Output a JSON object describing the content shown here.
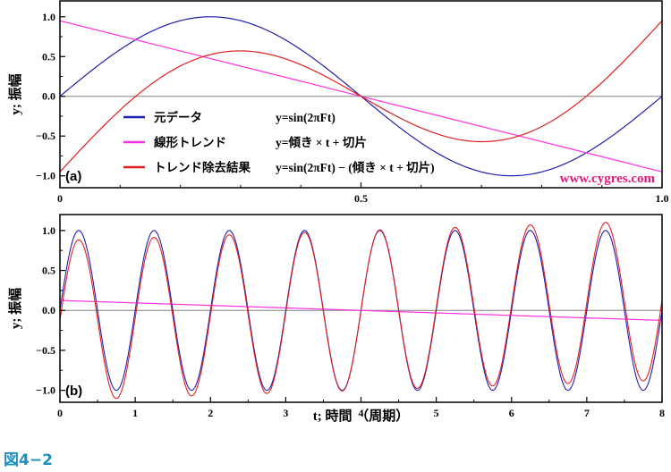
{
  "figure_label": "図4−2",
  "credit": "www.cygres.com",
  "colors": {
    "original": "#2020b0",
    "trend": "#ff30e0",
    "detrended": "#e02020",
    "axis": "#000000",
    "zero_line": "#808080",
    "credit": "#e0197d",
    "figure_label": "#1f8fbf"
  },
  "chart_data": [
    {
      "type": "line",
      "panel_tag": "(a)",
      "ylabel": "y; 振幅",
      "xlim": [
        0,
        1.0
      ],
      "ylim": [
        -1.15,
        1.2
      ],
      "x_ticks": [
        "0",
        "0.5",
        "1.0"
      ],
      "y_ticks": [
        "1.0",
        "0.5",
        "0.0",
        "−0.5",
        "−1.0"
      ],
      "grid": false,
      "legend_position": "lower-left",
      "series": [
        {
          "name": "元データ",
          "formula": "y=sin(2πFt)",
          "frequency": 1,
          "amplitude": 1.0
        },
        {
          "name": "線形トレンド",
          "formula": "y=傾き × t + 切片",
          "slope": -1.9,
          "intercept": 0.95
        },
        {
          "name": "トレンド除去結果",
          "formula": "y=sin(2πFt) − (傾き × t + 切片)"
        }
      ]
    },
    {
      "type": "line",
      "panel_tag": "(b)",
      "xlabel": "t; 時間 （周期）",
      "ylabel": "y; 振幅",
      "xlim": [
        0,
        8
      ],
      "ylim": [
        -1.15,
        1.2
      ],
      "x_ticks": [
        "0",
        "1",
        "2",
        "3",
        "4",
        "5",
        "6",
        "7",
        "8"
      ],
      "y_ticks": [
        "1.0",
        "0.5",
        "0.0",
        "−0.5",
        "−1.0"
      ],
      "grid": false,
      "series": [
        {
          "name": "元データ",
          "frequency": 1,
          "amplitude": 1.0
        },
        {
          "name": "線形トレンド",
          "slope": -0.03125,
          "intercept": 0.125
        },
        {
          "name": "トレンド除去結果"
        }
      ]
    }
  ]
}
